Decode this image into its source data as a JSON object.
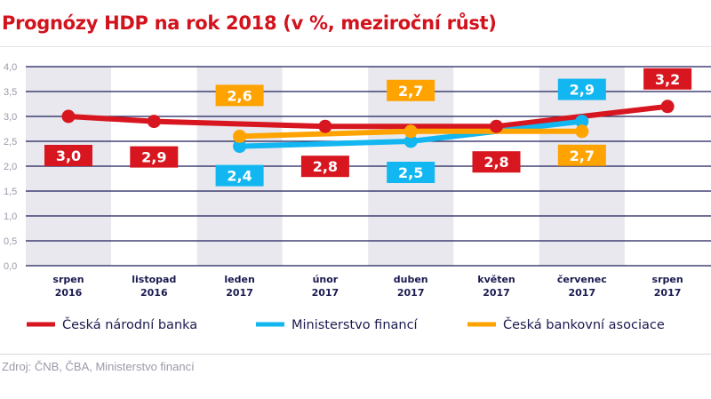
{
  "title": "Prognózy HDP na rok 2018 (v %, meziroční růst)",
  "source": "Zdroj: ČNB, ČBA, Ministerstvo financí",
  "chart_data": {
    "type": "line",
    "title": "Prognózy HDP na rok 2018 (v %, meziroční růst)",
    "categories": [
      [
        "srpen",
        "2016"
      ],
      [
        "listopad",
        "2016"
      ],
      [
        "leden",
        "2017"
      ],
      [
        "únor",
        "2017"
      ],
      [
        "duben",
        "2017"
      ],
      [
        "květen",
        "2017"
      ],
      [
        "červenec",
        "2017"
      ],
      [
        "srpen",
        "2017"
      ]
    ],
    "ylim": [
      0,
      4
    ],
    "yticks": [
      "0,0",
      "0,5",
      "1,0",
      "1,5",
      "2,0",
      "2,5",
      "3,0",
      "3,5",
      "4,0"
    ],
    "grid": true,
    "shaded_columns": [
      0,
      2,
      4,
      6
    ],
    "legend_position": "bottom",
    "series": [
      {
        "name": "Česká národní banka",
        "color": "#d7161f",
        "values": [
          3.0,
          2.9,
          null,
          2.8,
          null,
          2.8,
          null,
          3.2
        ],
        "labels": [
          "3,0",
          "2,9",
          null,
          "2,8",
          null,
          "2,8",
          null,
          "3,2"
        ]
      },
      {
        "name": "Ministerstvo financí",
        "color": "#12b6f0",
        "values": [
          null,
          null,
          2.4,
          null,
          2.5,
          null,
          2.9,
          null
        ],
        "labels": [
          null,
          null,
          "2,4",
          null,
          "2,5",
          null,
          "2,9",
          null
        ]
      },
      {
        "name": "Česká bankovní asociace",
        "color": "#ffa300",
        "values": [
          null,
          null,
          2.6,
          null,
          2.7,
          null,
          2.7,
          null
        ],
        "labels": [
          null,
          null,
          "2,6",
          null,
          "2,7",
          null,
          "2,7",
          null
        ]
      }
    ]
  }
}
